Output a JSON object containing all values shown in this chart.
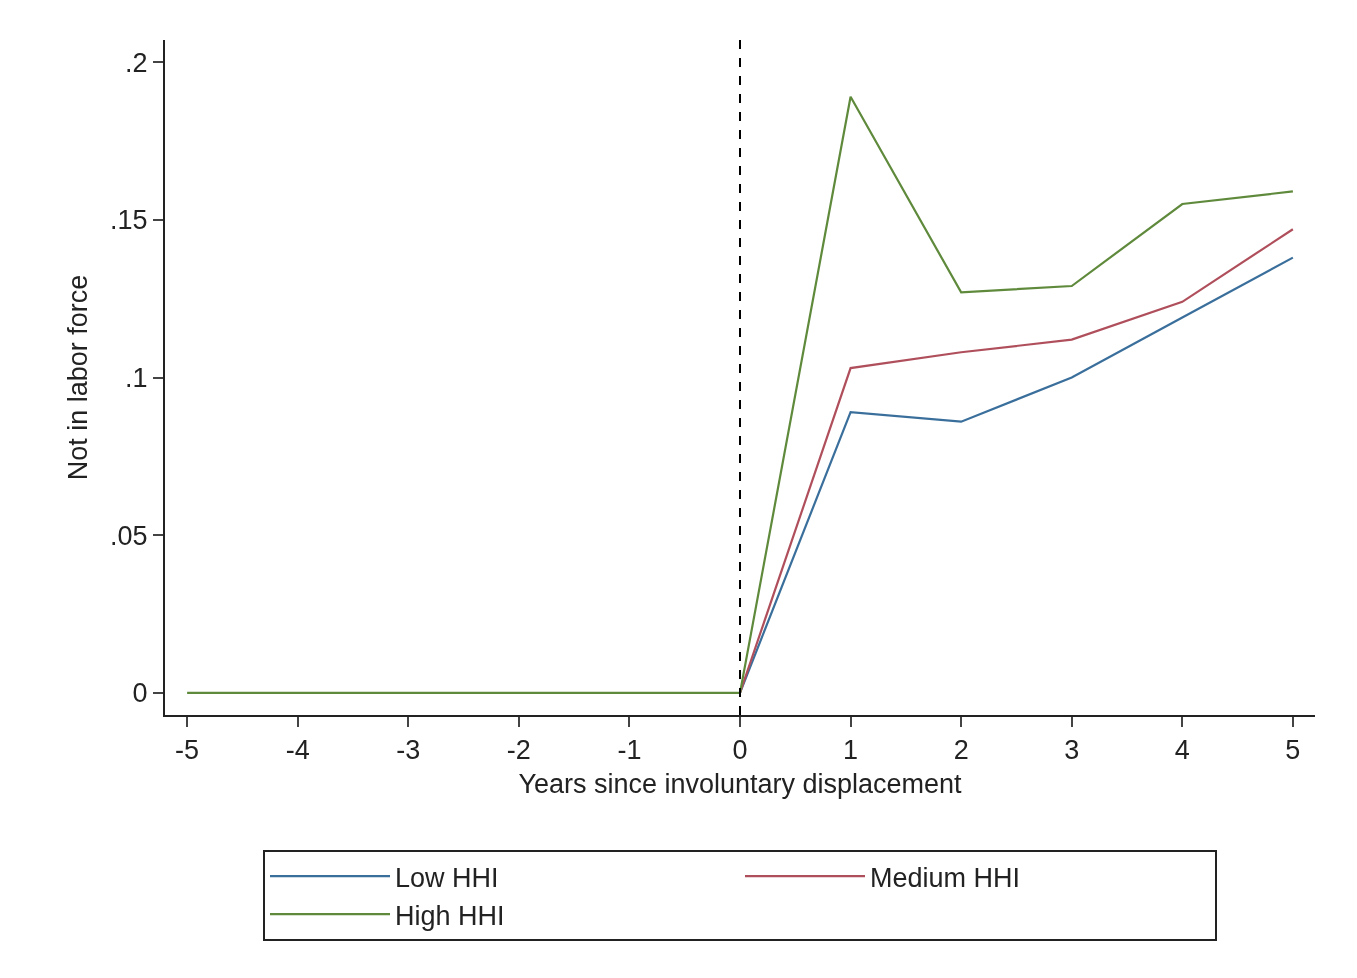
{
  "chart_data": {
    "type": "line",
    "xlabel": "Years since involuntary displacement",
    "ylabel": "Not in labor force",
    "x": [
      -5,
      -4,
      -3,
      -2,
      -1,
      0,
      1,
      2,
      3,
      4,
      5
    ],
    "series": [
      {
        "name": "Low HHI",
        "color": "#3a6f9c",
        "values": [
          null,
          null,
          null,
          null,
          null,
          0,
          0.089,
          0.086,
          0.1,
          0.119,
          0.138
        ]
      },
      {
        "name": "Medium HHI",
        "color": "#b04f5c",
        "values": [
          null,
          null,
          null,
          null,
          null,
          0,
          0.103,
          0.108,
          0.112,
          0.124,
          0.147
        ]
      },
      {
        "name": "High HHI",
        "color": "#5f8a3c",
        "values": [
          0,
          0,
          0,
          0,
          0,
          0,
          0.189,
          0.127,
          0.129,
          0.155,
          0.159
        ]
      }
    ],
    "xlim": [
      -5.2,
      5.2
    ],
    "ylim": [
      -0.007,
      0.207
    ],
    "xticks": [
      -5,
      -4,
      -3,
      -2,
      -1,
      0,
      1,
      2,
      3,
      4,
      5
    ],
    "yticks": [
      {
        "value": 0,
        "label": "0"
      },
      {
        "value": 0.05,
        "label": ".05"
      },
      {
        "value": 0.1,
        "label": ".1"
      },
      {
        "value": 0.15,
        "label": ".15"
      },
      {
        "value": 0.2,
        "label": ".2"
      }
    ],
    "ref_lines": [
      {
        "axis": "x",
        "value": 0,
        "color": "#000000",
        "line_style": "dashed"
      }
    ],
    "grid": false,
    "legend": "bottom",
    "marker": "none",
    "line_style": "solid"
  }
}
